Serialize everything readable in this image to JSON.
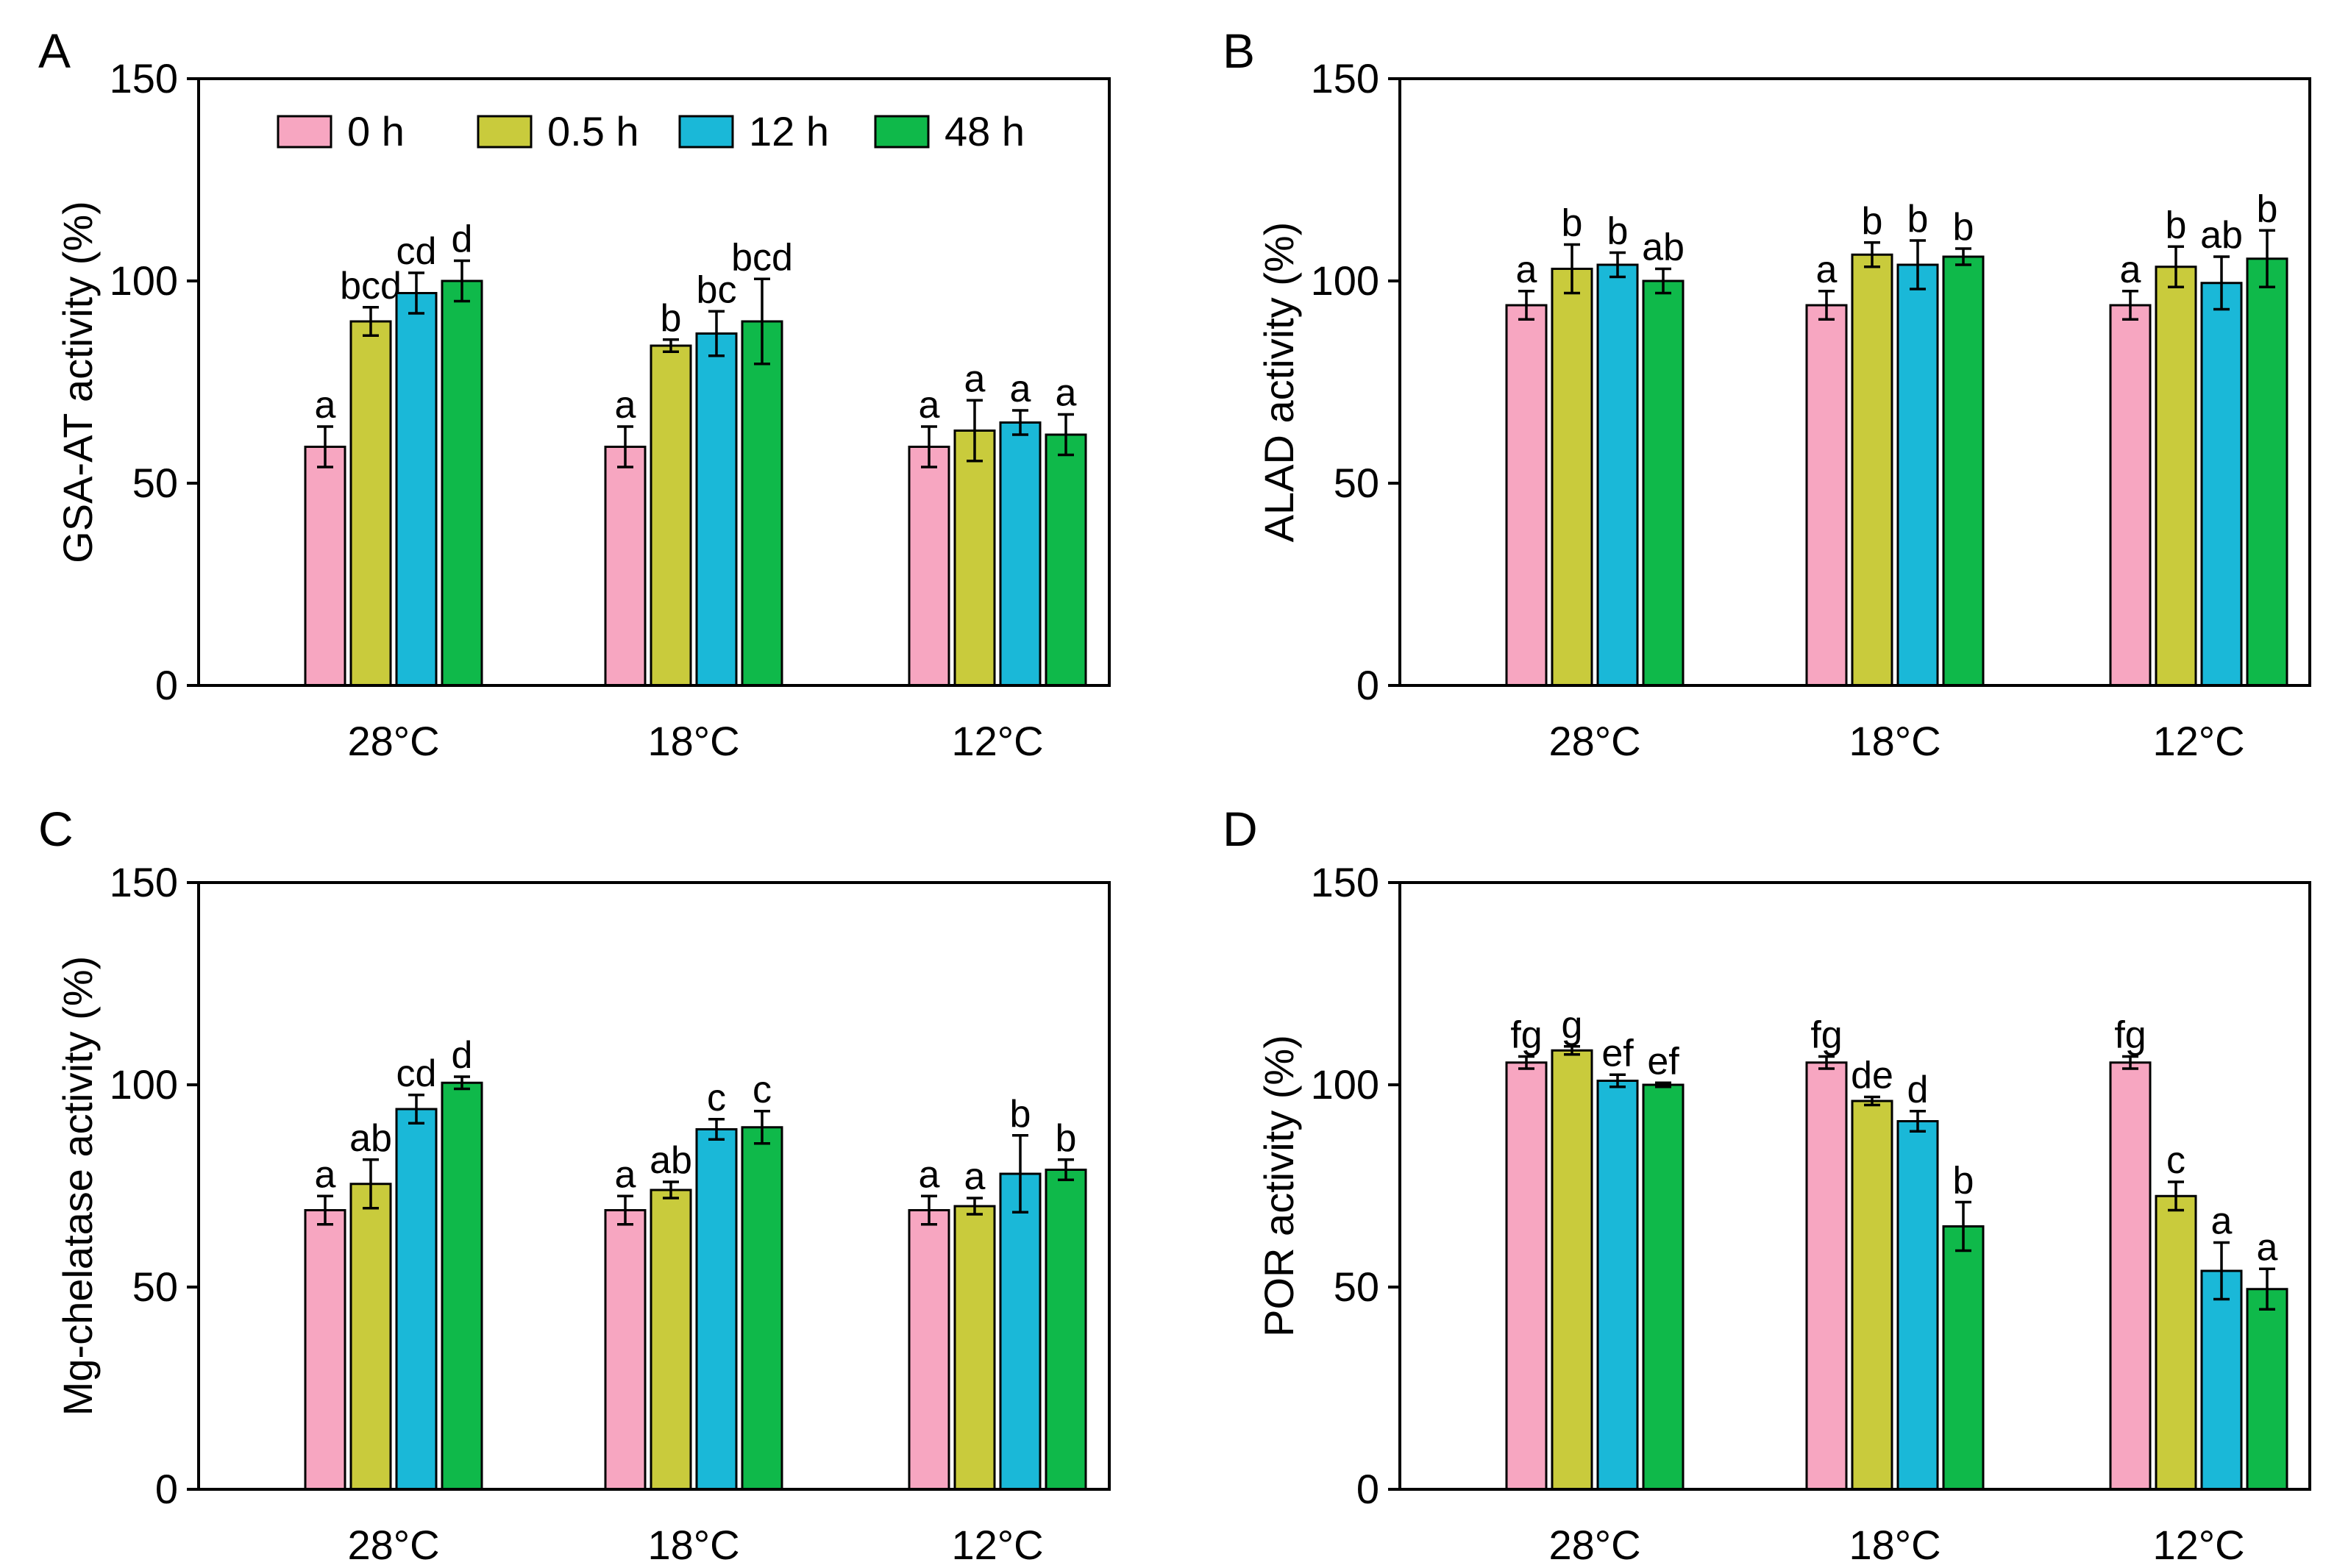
{
  "colors": {
    "0 h": "#f7a6c1",
    "0.5 h": "#c9cb3c",
    "12 h": "#1ab8d8",
    "48 h": "#0fb94a",
    "frame": "#000000"
  },
  "legend": [
    "0 h",
    "0.5 h",
    "12 h",
    "48 h"
  ],
  "chart_data": [
    {
      "panel": "A",
      "type": "bar",
      "ylabel": "GSA-AT activity (%)",
      "ylim": [
        0,
        150
      ],
      "yticks": [
        0,
        50,
        100,
        150
      ],
      "categories": [
        "28°C",
        "18°C",
        "12°C"
      ],
      "legend_position": "top",
      "series": [
        {
          "name": "0 h",
          "values": [
            59,
            59,
            59
          ],
          "errors": [
            5,
            5,
            5
          ],
          "labels": [
            "a",
            "a",
            "a"
          ]
        },
        {
          "name": "0.5 h",
          "values": [
            90,
            84,
            63
          ],
          "errors": [
            3.5,
            1.5,
            7.5
          ],
          "labels": [
            "bcd",
            "b",
            "a"
          ]
        },
        {
          "name": "12 h",
          "values": [
            97,
            87,
            65
          ],
          "errors": [
            5,
            5.5,
            3
          ],
          "labels": [
            "cd",
            "bc",
            "a"
          ]
        },
        {
          "name": "48 h",
          "values": [
            100,
            90,
            62
          ],
          "errors": [
            5,
            10.5,
            5
          ],
          "labels": [
            "d",
            "bcd",
            "a"
          ]
        }
      ]
    },
    {
      "panel": "B",
      "type": "bar",
      "ylabel": "ALAD activity (%)",
      "ylim": [
        0,
        150
      ],
      "yticks": [
        0,
        50,
        100,
        150
      ],
      "categories": [
        "28°C",
        "18°C",
        "12°C"
      ],
      "series": [
        {
          "name": "0 h",
          "values": [
            94,
            94,
            94
          ],
          "errors": [
            3.5,
            3.5,
            3.5
          ],
          "labels": [
            "a",
            "a",
            "a"
          ]
        },
        {
          "name": "0.5 h",
          "values": [
            103,
            106.5,
            103.5
          ],
          "errors": [
            6,
            3,
            5
          ],
          "labels": [
            "b",
            "b",
            "b"
          ]
        },
        {
          "name": "12 h",
          "values": [
            104,
            104,
            99.5
          ],
          "errors": [
            3,
            6,
            6.5
          ],
          "labels": [
            "b",
            "b",
            "ab"
          ]
        },
        {
          "name": "48 h",
          "values": [
            100,
            106,
            105.5
          ],
          "errors": [
            3,
            2,
            7
          ],
          "labels": [
            "ab",
            "b",
            "b"
          ]
        }
      ]
    },
    {
      "panel": "C",
      "type": "bar",
      "ylabel": "Mg-chelatase activity (%)",
      "ylim": [
        0,
        150
      ],
      "yticks": [
        0,
        50,
        100,
        150
      ],
      "categories": [
        "28°C",
        "18°C",
        "12°C"
      ],
      "series": [
        {
          "name": "0 h",
          "values": [
            69,
            69,
            69
          ],
          "errors": [
            3.5,
            3.5,
            3.5
          ],
          "labels": [
            "a",
            "a",
            "a"
          ]
        },
        {
          "name": "0.5 h",
          "values": [
            75.5,
            74,
            70
          ],
          "errors": [
            6,
            2,
            2
          ],
          "labels": [
            "ab",
            "ab",
            "a"
          ]
        },
        {
          "name": "12 h",
          "values": [
            94,
            89,
            78
          ],
          "errors": [
            3.5,
            2.5,
            9.5
          ],
          "labels": [
            "cd",
            "c",
            "b"
          ]
        },
        {
          "name": "48 h",
          "values": [
            100.5,
            89.5,
            79
          ],
          "errors": [
            1.5,
            4,
            2.5
          ],
          "labels": [
            "d",
            "c",
            "b"
          ]
        }
      ]
    },
    {
      "panel": "D",
      "type": "bar",
      "ylabel": "POR activity (%)",
      "ylim": [
        0,
        150
      ],
      "yticks": [
        0,
        50,
        100,
        150
      ],
      "categories": [
        "28°C",
        "18°C",
        "12°C"
      ],
      "series": [
        {
          "name": "0 h",
          "values": [
            105.5,
            105.5,
            105.5
          ],
          "errors": [
            1.5,
            1.5,
            1.5
          ],
          "labels": [
            "fg",
            "fg",
            "fg"
          ]
        },
        {
          "name": "0.5 h",
          "values": [
            108.5,
            96,
            72.5
          ],
          "errors": [
            1,
            1,
            3.5
          ],
          "labels": [
            "g",
            "de",
            "c"
          ]
        },
        {
          "name": "12 h",
          "values": [
            101,
            91,
            54
          ],
          "errors": [
            1.5,
            2.5,
            7
          ],
          "labels": [
            "ef",
            "d",
            "a"
          ]
        },
        {
          "name": "48 h",
          "values": [
            100,
            65,
            49.5
          ],
          "errors": [
            0.5,
            6,
            5
          ],
          "labels": [
            "ef",
            "b",
            "a"
          ]
        }
      ]
    }
  ]
}
